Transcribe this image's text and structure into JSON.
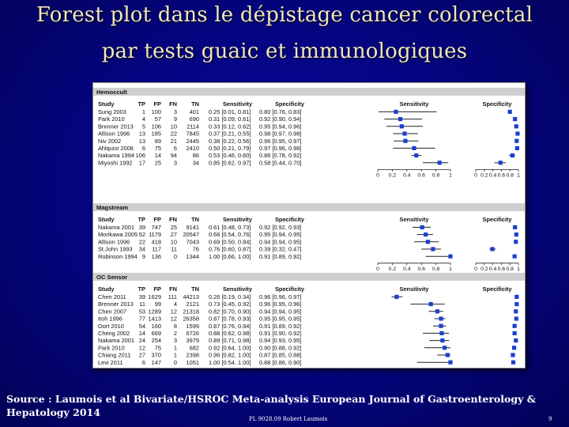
{
  "title_line1": "Forest plot dans le dépistage cancer colorectal",
  "title_line2": "par tests  guaic et immunologiques",
  "footer": {
    "source_line1": "Source : Laumois et al Bivariate/HSROC Meta-analysis European Journal of Gastroenterology &",
    "source_line2": "Hepatology 2014",
    "center_label": "PL 9028.09 Robert Laumois",
    "page_number": "9"
  },
  "colors": {
    "marker": "#1b3fd0",
    "ci_line": "#222222",
    "panel_bg": "#ffffff",
    "header_bar": "#cfcfcf"
  },
  "chart_data": {
    "type": "forest",
    "col_headers": {
      "study": "Study",
      "tp": "TP",
      "fp": "FP",
      "fn": "FN",
      "tn": "TN",
      "sens": "Sensitivity",
      "spec": "Specificity"
    },
    "axis": {
      "ticks": [
        "0",
        "0.2",
        "0.4",
        "0.6",
        "0.8",
        "1"
      ],
      "range": [
        0,
        1
      ]
    },
    "plot_titles": {
      "sens": "Sensitivity",
      "spec": "Specificity"
    },
    "groups": [
      {
        "name": "Hemoccult",
        "studies": [
          {
            "study": "Sung 2003",
            "tp": "1",
            "fp": "100",
            "fn": "3",
            "tn": "401",
            "sens_text": "0.25 [0.01, 0.81]",
            "spec_text": "0.80 [0.76, 0.83]",
            "sens": [
              0.25,
              0.01,
              0.81
            ],
            "spec": [
              0.8,
              0.76,
              0.83
            ]
          },
          {
            "study": "Park 2010",
            "tp": "4",
            "fp": "57",
            "fn": "9",
            "tn": "690",
            "sens_text": "0.31 [0.09, 0.61]",
            "spec_text": "0.92 [0.90, 0.94]",
            "sens": [
              0.31,
              0.09,
              0.61
            ],
            "spec": [
              0.92,
              0.9,
              0.94
            ]
          },
          {
            "study": "Brenner 2013",
            "tp": "5",
            "fp": "106",
            "fn": "10",
            "tn": "2114",
            "sens_text": "0.33 [0.12, 0.62]",
            "spec_text": "0.95 [0.94, 0.96]",
            "sens": [
              0.33,
              0.12,
              0.62
            ],
            "spec": [
              0.95,
              0.94,
              0.96
            ]
          },
          {
            "study": "Allison 1996",
            "tp": "13",
            "fp": "185",
            "fn": "22",
            "tn": "7845",
            "sens_text": "0.37 [0.21, 0.55]",
            "spec_text": "0.98 [0.97, 0.98]",
            "sens": [
              0.37,
              0.21,
              0.55
            ],
            "spec": [
              0.98,
              0.97,
              0.98
            ]
          },
          {
            "study": "Niv 2002",
            "tp": "13",
            "fp": "89",
            "fn": "21",
            "tn": "2445",
            "sens_text": "0.38 [0.22, 0.56]",
            "spec_text": "0.96 [0.95, 0.97]",
            "sens": [
              0.38,
              0.22,
              0.56
            ],
            "spec": [
              0.96,
              0.95,
              0.97
            ]
          },
          {
            "study": "Ahlquist 2008",
            "tp": "6",
            "fp": "75",
            "fn": "6",
            "tn": "2410",
            "sens_text": "0.50 [0.21, 0.79]",
            "spec_text": "0.97 [0.96, 0.98]",
            "sens": [
              0.5,
              0.21,
              0.79
            ],
            "spec": [
              0.97,
              0.96,
              0.98
            ]
          },
          {
            "study": "Nakama 1994",
            "tp": "106",
            "fp": "14",
            "fn": "94",
            "tn": "86",
            "sens_text": "0.53 [0.46, 0.60]",
            "spec_text": "0.86 [0.78, 0.92]",
            "sens": [
              0.53,
              0.46,
              0.6
            ],
            "spec": [
              0.86,
              0.78,
              0.92
            ]
          },
          {
            "study": "Miyoshi 1992",
            "tp": "17",
            "fp": "25",
            "fn": "3",
            "tn": "34",
            "sens_text": "0.85 [0.62, 0.97]",
            "spec_text": "0.58 [0.44, 0.70]",
            "sens": [
              0.85,
              0.62,
              0.97
            ],
            "spec": [
              0.58,
              0.44,
              0.7
            ]
          }
        ]
      },
      {
        "name": "Magstream",
        "studies": [
          {
            "study": "Nakama 2001",
            "tp": "39",
            "fp": "747",
            "fn": "25",
            "tn": "9141",
            "sens_text": "0.61 [0.48, 0.73]",
            "spec_text": "0.92 [0.92, 0.93]",
            "sens": [
              0.61,
              0.48,
              0.73
            ],
            "spec": [
              0.92,
              0.92,
              0.93
            ]
          },
          {
            "study": "Morikawa 2005",
            "tp": "52",
            "fp": "1179",
            "fn": "27",
            "tn": "20547",
            "sens_text": "0.66 [0.54, 0.76]",
            "spec_text": "0.95 [0.94, 0.95]",
            "sens": [
              0.66,
              0.54,
              0.76
            ],
            "spec": [
              0.95,
              0.94,
              0.95
            ]
          },
          {
            "study": "Allison 1996",
            "tp": "22",
            "fp": "418",
            "fn": "10",
            "tn": "7043",
            "sens_text": "0.69 [0.50, 0.84]",
            "spec_text": "0.94 [0.94, 0.95]",
            "sens": [
              0.69,
              0.5,
              0.84
            ],
            "spec": [
              0.94,
              0.94,
              0.95
            ]
          },
          {
            "study": "St.John 1993",
            "tp": "34",
            "fp": "117",
            "fn": "11",
            "tn": "76",
            "sens_text": "0.76 [0.60, 0.87]",
            "spec_text": "0.39 [0.32, 0.47]",
            "sens": [
              0.76,
              0.6,
              0.87
            ],
            "spec": [
              0.39,
              0.32,
              0.47
            ]
          },
          {
            "study": "Robinson 1994",
            "tp": "9",
            "fp": "136",
            "fn": "0",
            "tn": "1344",
            "sens_text": "1.00 [0.66, 1.00]",
            "spec_text": "0.91 [0.89, 0.92]",
            "sens": [
              1.0,
              0.66,
              1.0
            ],
            "spec": [
              0.91,
              0.89,
              0.92
            ]
          }
        ]
      },
      {
        "name": "OC Sensor",
        "studies": [
          {
            "study": "Chen 2011",
            "tp": "39",
            "fp": "1629",
            "fn": "111",
            "tn": "44213",
            "sens_text": "0.26 [0.19, 0.34]",
            "spec_text": "0.96 [0.96, 0.97]",
            "sens": [
              0.26,
              0.19,
              0.34
            ],
            "spec": [
              0.96,
              0.96,
              0.97
            ]
          },
          {
            "study": "Brenner 2013",
            "tp": "11",
            "fp": "99",
            "fn": "4",
            "tn": "2121",
            "sens_text": "0.73 [0.45, 0.92]",
            "spec_text": "0.96 [0.95, 0.96]",
            "sens": [
              0.73,
              0.45,
              0.92
            ],
            "spec": [
              0.96,
              0.95,
              0.96
            ]
          },
          {
            "study": "Chen 2007",
            "tp": "53",
            "fp": "1289",
            "fn": "12",
            "tn": "21318",
            "sens_text": "0.82 [0.70, 0.90]",
            "spec_text": "0.94 [0.94, 0.95]",
            "sens": [
              0.82,
              0.7,
              0.9
            ],
            "spec": [
              0.94,
              0.94,
              0.95
            ]
          },
          {
            "study": "Itoh 1996",
            "tp": "77",
            "fp": "1413",
            "fn": "12",
            "tn": "26358",
            "sens_text": "0.87 [0.78, 0.93]",
            "spec_text": "0.95 [0.95, 0.95]",
            "sens": [
              0.87,
              0.78,
              0.93
            ],
            "spec": [
              0.95,
              0.95,
              0.95
            ]
          },
          {
            "study": "Oort 2010",
            "tp": "54",
            "fp": "160",
            "fn": "8",
            "tn": "1599",
            "sens_text": "0.87 [0.76, 0.94]",
            "spec_text": "0.91 [0.89, 0.92]",
            "sens": [
              0.87,
              0.76,
              0.94
            ],
            "spec": [
              0.91,
              0.89,
              0.92
            ]
          },
          {
            "study": "Cheng 2002",
            "tp": "14",
            "fp": "669",
            "fn": "2",
            "tn": "6726",
            "sens_text": "0.88 [0.62, 0.98]",
            "spec_text": "0.91 [0.90, 0.92]",
            "sens": [
              0.88,
              0.62,
              0.98
            ],
            "spec": [
              0.91,
              0.9,
              0.92
            ]
          },
          {
            "study": "Nakama 2001",
            "tp": "24",
            "fp": "254",
            "fn": "3",
            "tn": "3979",
            "sens_text": "0.89 [0.71, 0.98]",
            "spec_text": "0.94 [0.93, 0.95]",
            "sens": [
              0.89,
              0.71,
              0.98
            ],
            "spec": [
              0.94,
              0.93,
              0.95
            ]
          },
          {
            "study": "Park 2010",
            "tp": "12",
            "fp": "75",
            "fn": "1",
            "tn": "682",
            "sens_text": "0.92 [0.64, 1.00]",
            "spec_text": "0.90 [0.88, 0.92]",
            "sens": [
              0.92,
              0.64,
              1.0
            ],
            "spec": [
              0.9,
              0.88,
              0.92
            ]
          },
          {
            "study": "Chiang 2011",
            "tp": "27",
            "fp": "370",
            "fn": "1",
            "tn": "2398",
            "sens_text": "0.96 [0.82, 1.00]",
            "spec_text": "0.87 [0.85, 0.88]",
            "sens": [
              0.96,
              0.82,
              1.0
            ],
            "spec": [
              0.87,
              0.85,
              0.88
            ]
          },
          {
            "study": "Levi 2011",
            "tp": "6",
            "fp": "147",
            "fn": "0",
            "tn": "1051",
            "sens_text": "1.00 [0.54, 1.00]",
            "spec_text": "0.88 [0.86, 0.90]",
            "sens": [
              1.0,
              0.54,
              1.0
            ],
            "spec": [
              0.88,
              0.86,
              0.9
            ]
          }
        ]
      }
    ]
  }
}
